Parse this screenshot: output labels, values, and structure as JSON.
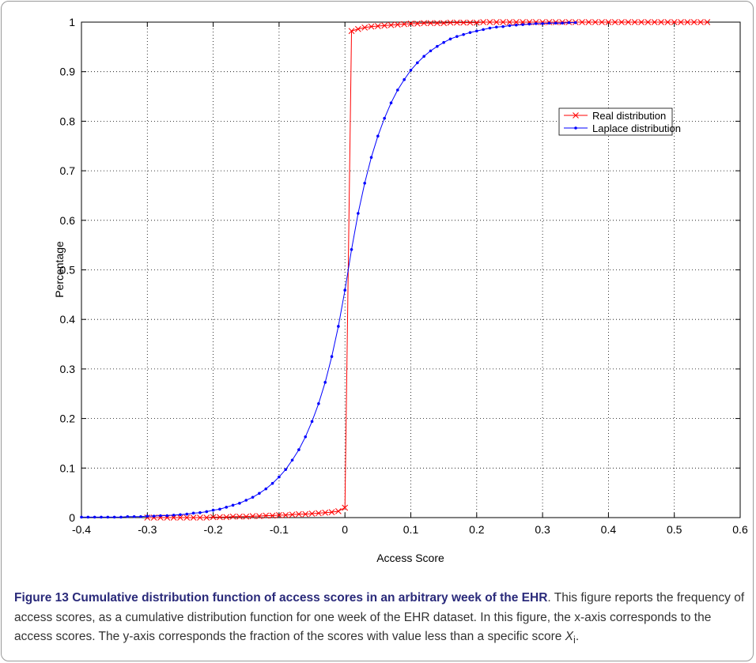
{
  "chart_data": {
    "type": "line",
    "xlabel": "Access Score",
    "ylabel": "Percentage",
    "xlim": [
      -0.4,
      0.6
    ],
    "xticks": [
      -0.4,
      -0.3,
      -0.2,
      -0.1,
      0,
      0.1,
      0.2,
      0.3,
      0.4,
      0.5,
      0.6
    ],
    "ylim": [
      0,
      1
    ],
    "yticks": [
      0,
      0.1,
      0.2,
      0.3,
      0.4,
      0.5,
      0.6,
      0.7,
      0.8,
      0.9,
      1
    ],
    "grid": true,
    "legend": "upper right",
    "series": [
      {
        "name": "Real distribution",
        "color": "#ff0000",
        "marker": "x",
        "x": [
          -0.3,
          -0.29,
          -0.28,
          -0.27,
          -0.26,
          -0.25,
          -0.24,
          -0.23,
          -0.22,
          -0.21,
          -0.2,
          -0.19,
          -0.18,
          -0.17,
          -0.16,
          -0.15,
          -0.14,
          -0.13,
          -0.12,
          -0.11,
          -0.1,
          -0.09,
          -0.08,
          -0.07,
          -0.06,
          -0.05,
          -0.04,
          -0.03,
          -0.02,
          -0.01,
          0,
          0.01,
          0.02,
          0.03,
          0.04,
          0.05,
          0.06,
          0.07,
          0.08,
          0.09,
          0.1,
          0.11,
          0.12,
          0.13,
          0.14,
          0.15,
          0.16,
          0.17,
          0.18,
          0.19,
          0.2,
          0.21,
          0.22,
          0.23,
          0.24,
          0.25,
          0.26,
          0.27,
          0.28,
          0.29,
          0.3,
          0.31,
          0.32,
          0.33,
          0.34,
          0.35,
          0.36,
          0.37,
          0.38,
          0.39,
          0.4,
          0.41,
          0.42,
          0.43,
          0.44,
          0.45,
          0.46,
          0.47,
          0.48,
          0.49,
          0.5,
          0.51,
          0.52,
          0.53,
          0.54,
          0.55
        ],
        "values": [
          0,
          0,
          0,
          0,
          0,
          0,
          0,
          0,
          0,
          0,
          0.001,
          0.001,
          0.001,
          0.002,
          0.002,
          0.002,
          0.003,
          0.003,
          0.004,
          0.004,
          0.005,
          0.005,
          0.006,
          0.007,
          0.007,
          0.008,
          0.009,
          0.01,
          0.011,
          0.013,
          0.02,
          0.982,
          0.986,
          0.989,
          0.991,
          0.992,
          0.993,
          0.994,
          0.995,
          0.996,
          0.997,
          0.997,
          0.998,
          0.998,
          0.998,
          0.998,
          0.999,
          0.999,
          0.999,
          0.999,
          0.999,
          1,
          1,
          1,
          1,
          1,
          1,
          1,
          1,
          1,
          1,
          1,
          1,
          1,
          1,
          1,
          1,
          1,
          1,
          1,
          1,
          1,
          1,
          1,
          1,
          1,
          1,
          1,
          1,
          1,
          1,
          1,
          1,
          1,
          1,
          1
        ]
      },
      {
        "name": "Laplace distribution",
        "color": "#0000ff",
        "marker": "dot",
        "x": [
          -0.4,
          -0.39,
          -0.38,
          -0.37,
          -0.36,
          -0.35,
          -0.34,
          -0.33,
          -0.32,
          -0.31,
          -0.3,
          -0.29,
          -0.28,
          -0.27,
          -0.26,
          -0.25,
          -0.24,
          -0.23,
          -0.22,
          -0.21,
          -0.2,
          -0.19,
          -0.18,
          -0.17,
          -0.16,
          -0.15,
          -0.14,
          -0.13,
          -0.12,
          -0.11,
          -0.1,
          -0.09,
          -0.08,
          -0.07,
          -0.06,
          -0.05,
          -0.04,
          -0.03,
          -0.02,
          -0.01,
          0,
          0.01,
          0.02,
          0.03,
          0.04,
          0.05,
          0.06,
          0.07,
          0.08,
          0.09,
          0.1,
          0.11,
          0.12,
          0.13,
          0.14,
          0.15,
          0.16,
          0.17,
          0.18,
          0.19,
          0.2,
          0.21,
          0.22,
          0.23,
          0.24,
          0.25,
          0.26,
          0.27,
          0.28,
          0.29,
          0.3,
          0.31,
          0.32,
          0.33,
          0.34,
          0.35
        ],
        "values": [
          0.001,
          0.001,
          0.001,
          0.001,
          0.001,
          0.001,
          0.001,
          0.002,
          0.002,
          0.002,
          0.003,
          0.003,
          0.004,
          0.004,
          0.005,
          0.006,
          0.007,
          0.009,
          0.01,
          0.012,
          0.015,
          0.017,
          0.021,
          0.025,
          0.029,
          0.035,
          0.041,
          0.049,
          0.058,
          0.069,
          0.082,
          0.097,
          0.116,
          0.137,
          0.163,
          0.194,
          0.23,
          0.273,
          0.325,
          0.386,
          0.459,
          0.541,
          0.614,
          0.675,
          0.727,
          0.77,
          0.806,
          0.837,
          0.863,
          0.884,
          0.903,
          0.918,
          0.931,
          0.942,
          0.951,
          0.959,
          0.966,
          0.971,
          0.975,
          0.979,
          0.982,
          0.985,
          0.988,
          0.99,
          0.991,
          0.993,
          0.994,
          0.995,
          0.996,
          0.997,
          0.997,
          0.998,
          0.998,
          0.998,
          0.999,
          0.999
        ]
      }
    ]
  },
  "caption": {
    "title": "Figure 13 Cumulative distribution function of access scores in an arbitrary week of the EHR",
    "body": ". This figure reports the frequency of access scores, as a cumulative distribution function for one week of the EHR dataset. In this figure, the x-axis corresponds to the access scores. The y-axis corresponds the fraction of the scores with value less than a specific score ",
    "symbol": "X",
    "subscript": "i",
    "end": "."
  }
}
